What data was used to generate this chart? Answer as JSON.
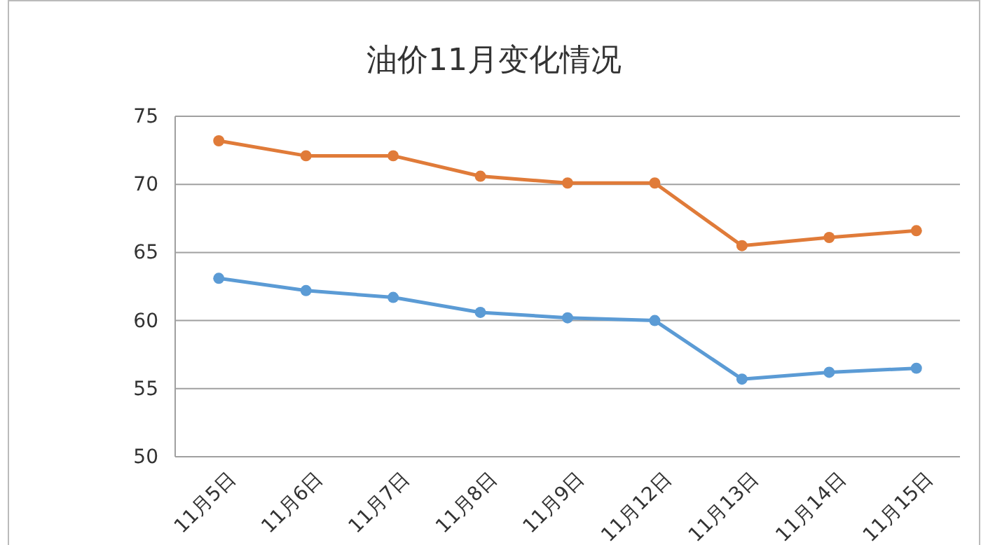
{
  "chart_data": {
    "type": "line",
    "title": "油价11月变化情况",
    "categories": [
      "11月5日",
      "11月6日",
      "11月7日",
      "11月8日",
      "11月9日",
      "11月12日",
      "11月13日",
      "11月14日",
      "11月15日"
    ],
    "series": [
      {
        "color": "#e07b39",
        "values": [
          73.2,
          72.1,
          72.1,
          70.6,
          70.1,
          70.1,
          65.5,
          66.1,
          66.6
        ]
      },
      {
        "color": "#5b9bd5",
        "values": [
          63.1,
          62.2,
          61.7,
          60.6,
          60.2,
          60.0,
          55.7,
          56.2,
          56.5
        ]
      }
    ],
    "ylim": [
      50,
      75
    ],
    "yticks": [
      50,
      55,
      60,
      65,
      70,
      75
    ],
    "grid": "y",
    "marker": "circle",
    "line_style": "solid"
  }
}
